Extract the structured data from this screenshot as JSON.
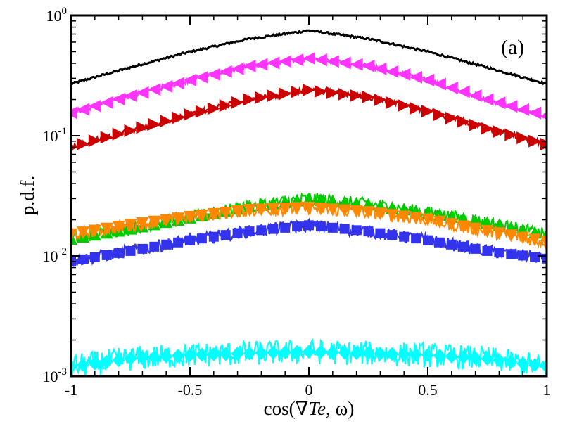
{
  "chart_data": {
    "type": "line",
    "title": "",
    "annotation": "(a)",
    "xlabel": "cos(∇Te, ω)",
    "xlabel_parts": [
      "cos(∇",
      "Te",
      ", ω)"
    ],
    "ylabel": "p.d.f.",
    "xlim": [
      -1,
      1
    ],
    "ylim": [
      0.001,
      1
    ],
    "yscale": "log",
    "xticks": [
      -1,
      -0.5,
      0,
      0.5,
      1
    ],
    "xtick_labels": [
      "-1",
      "-0.5",
      "0",
      "0.5",
      "1"
    ],
    "yticks": [
      {
        "base": "10",
        "exp": "-3",
        "value": 0.001
      },
      {
        "base": "10",
        "exp": "-2",
        "value": 0.01
      },
      {
        "base": "10",
        "exp": "-1",
        "value": 0.1
      },
      {
        "base": "10",
        "exp": "0",
        "value": 1
      }
    ],
    "series": [
      {
        "name": "black",
        "color": "#000000",
        "marker": "none",
        "noise": 0.005,
        "x": [
          -1,
          -0.75,
          -0.5,
          -0.25,
          0,
          0.25,
          0.5,
          0.75,
          1
        ],
        "values": [
          0.27,
          0.37,
          0.5,
          0.64,
          0.75,
          0.64,
          0.5,
          0.37,
          0.27
        ]
      },
      {
        "name": "magenta",
        "color": "#ff33ff",
        "marker": "triangle-left",
        "noise": 0.012,
        "x": [
          -1,
          -0.75,
          -0.5,
          -0.25,
          0,
          0.25,
          0.5,
          0.75,
          1
        ],
        "values": [
          0.155,
          0.215,
          0.29,
          0.38,
          0.44,
          0.38,
          0.29,
          0.2,
          0.145
        ]
      },
      {
        "name": "red",
        "color": "#cc0000",
        "marker": "triangle-right",
        "noise": 0.014,
        "x": [
          -1,
          -0.75,
          -0.5,
          -0.25,
          0,
          0.25,
          0.5,
          0.75,
          1
        ],
        "values": [
          0.08,
          0.11,
          0.15,
          0.2,
          0.24,
          0.21,
          0.16,
          0.115,
          0.085
        ]
      },
      {
        "name": "green",
        "color": "#00cc00",
        "marker": "triangle-up",
        "noise": 0.03,
        "x": [
          -1,
          -0.75,
          -0.5,
          -0.25,
          0,
          0.25,
          0.5,
          0.75,
          1
        ],
        "values": [
          0.014,
          0.017,
          0.021,
          0.026,
          0.03,
          0.027,
          0.023,
          0.019,
          0.015
        ]
      },
      {
        "name": "orange",
        "color": "#ff8800",
        "marker": "triangle-down",
        "noise": 0.03,
        "x": [
          -1,
          -0.75,
          -0.5,
          -0.25,
          0,
          0.25,
          0.5,
          0.75,
          1
        ],
        "values": [
          0.015,
          0.018,
          0.021,
          0.024,
          0.025,
          0.023,
          0.02,
          0.016,
          0.013
        ]
      },
      {
        "name": "blue",
        "color": "#3333ee",
        "marker": "square",
        "noise": 0.03,
        "x": [
          -1,
          -0.75,
          -0.5,
          -0.25,
          0,
          0.25,
          0.5,
          0.75,
          1
        ],
        "values": [
          0.009,
          0.011,
          0.0135,
          0.016,
          0.018,
          0.016,
          0.0135,
          0.011,
          0.0095
        ]
      },
      {
        "name": "cyan",
        "color": "#00ffff",
        "marker": "diamond",
        "noise": 0.06,
        "x": [
          -1,
          -0.75,
          -0.5,
          -0.25,
          0,
          0.25,
          0.5,
          0.75,
          1
        ],
        "values": [
          0.0012,
          0.0014,
          0.0015,
          0.00155,
          0.0016,
          0.00155,
          0.0015,
          0.0014,
          0.0012
        ]
      }
    ],
    "grid": false,
    "legend": "none"
  }
}
